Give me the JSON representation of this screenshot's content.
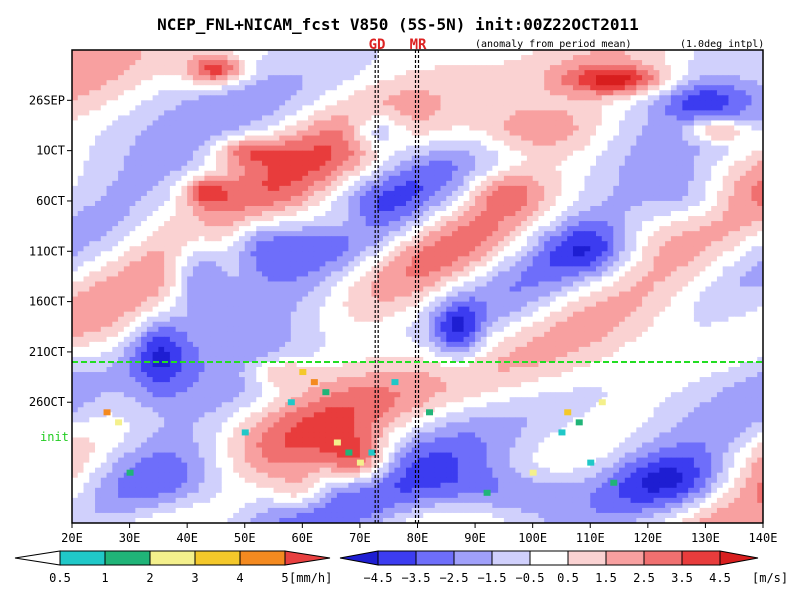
{
  "chart_data": {
    "type": "heatmap",
    "title": "NCEP_FNL+NICAM_fcst V850 (5S-5N) init:00Z22OCT2011",
    "subtitle_left": "(anomaly from period mean)",
    "subtitle_right": "(1.0deg intpl)",
    "x_axis": {
      "range": [
        20,
        140
      ],
      "ticks": [
        20,
        30,
        40,
        50,
        60,
        70,
        80,
        90,
        100,
        110,
        120,
        130,
        140
      ],
      "tick_labels": [
        "20E",
        "30E",
        "40E",
        "50E",
        "60E",
        "70E",
        "80E",
        "90E",
        "100E",
        "110E",
        "120E",
        "130E",
        "140E"
      ]
    },
    "y_axis": {
      "range_days": [
        0,
        47
      ],
      "tick_days": [
        5,
        10,
        15,
        20,
        25,
        30,
        35
      ],
      "tick_labels": [
        "26SEP",
        "1OCT",
        "6OCT",
        "11OCT",
        "16OCT",
        "21OCT",
        "26OCT"
      ]
    },
    "init": {
      "label": "init",
      "day": 31,
      "color": "#22dd22"
    },
    "markers": [
      {
        "label": "GD",
        "lon": 73,
        "color": "#dd2222"
      },
      {
        "label": "MR",
        "lon": 80,
        "color": "#dd2222"
      }
    ],
    "precip_colorbar": {
      "unit": "[mm/h]",
      "levels": [
        "0.5",
        "1",
        "2",
        "3",
        "4",
        "5"
      ],
      "colors": [
        "#ffffff",
        "#20c8c8",
        "#20b478",
        "#f4f08c",
        "#f4c82a",
        "#f48a20",
        "#e84040"
      ]
    },
    "wind_colorbar": {
      "unit": "[m/s]",
      "levels": [
        "−4.5",
        "−3.5",
        "−2.5",
        "−1.5",
        "−0.5",
        "0.5",
        "1.5",
        "2.5",
        "3.5",
        "4.5"
      ],
      "colors": [
        "#1e1ed2",
        "#3c3cf0",
        "#6e6efa",
        "#a0a0fa",
        "#d0d0fc",
        "#ffffff",
        "#fad2d2",
        "#f8a0a0",
        "#f07070",
        "#e83c3c",
        "#d81e1e"
      ]
    },
    "anomaly_features": [
      {
        "sign": "positive",
        "amplitude": 4.5,
        "lon": 45,
        "day": 2,
        "lon_halfwidth": 5,
        "day_halfwidth": 1.5
      },
      {
        "sign": "positive",
        "amplitude": 4.2,
        "lon": 115,
        "day": 3,
        "lon_halfwidth": 9,
        "day_halfwidth": 1.5
      },
      {
        "sign": "positive",
        "amplitude": 3.5,
        "lon": 132,
        "day": 8,
        "lon_halfwidth": 5,
        "day_halfwidth": 1.2
      },
      {
        "sign": "positive",
        "amplitude": 3.0,
        "lon": 50,
        "day": 10,
        "lon_halfwidth": 6,
        "day_halfwidth": 1.5
      },
      {
        "sign": "positive",
        "amplitude": 3.2,
        "lon": 43,
        "day": 14,
        "lon_halfwidth": 4,
        "day_halfwidth": 1.5
      },
      {
        "sign": "positive",
        "amplitude": 2.5,
        "lon": 100,
        "day": 8,
        "lon_halfwidth": 12,
        "day_halfwidth": 2.5
      },
      {
        "sign": "positive",
        "amplitude": 2.2,
        "lon": 67,
        "day": 17,
        "lon_halfwidth": 6,
        "day_halfwidth": 2
      },
      {
        "sign": "positive",
        "amplitude": 2.0,
        "lon": 95,
        "day": 14,
        "lon_halfwidth": 6,
        "day_halfwidth": 2
      },
      {
        "sign": "positive",
        "amplitude": 4.5,
        "lon": 70,
        "day": 41,
        "lon_halfwidth": 6,
        "day_halfwidth": 2.5
      },
      {
        "sign": "positive",
        "amplitude": 2.5,
        "lon": 56,
        "day": 32,
        "lon_halfwidth": 6,
        "day_halfwidth": 1.5
      },
      {
        "sign": "positive",
        "amplitude": 2.5,
        "lon": 60,
        "day": 44,
        "lon_halfwidth": 5,
        "day_halfwidth": 2
      },
      {
        "sign": "negative",
        "amplitude": -3.5,
        "lon": 73,
        "day": 8,
        "lon_halfwidth": 5,
        "day_halfwidth": 2
      },
      {
        "sign": "negative",
        "amplitude": -4.0,
        "lon": 42,
        "day": 22,
        "lon_halfwidth": 5,
        "day_halfwidth": 4
      },
      {
        "sign": "negative",
        "amplitude": -3.5,
        "lon": 35,
        "day": 30,
        "lon_halfwidth": 5,
        "day_halfwidth": 4
      },
      {
        "sign": "negative",
        "amplitude": -3.0,
        "lon": 52,
        "day": 19,
        "lon_halfwidth": 6,
        "day_halfwidth": 3
      },
      {
        "sign": "negative",
        "amplitude": -3.5,
        "lon": 87,
        "day": 28,
        "lon_halfwidth": 4,
        "day_halfwidth": 3
      },
      {
        "sign": "negative",
        "amplitude": -3.0,
        "lon": 110,
        "day": 20,
        "lon_halfwidth": 8,
        "day_halfwidth": 3
      },
      {
        "sign": "negative",
        "amplitude": -2.5,
        "lon": 128,
        "day": 15,
        "lon_halfwidth": 8,
        "day_halfwidth": 3
      },
      {
        "sign": "negative",
        "amplitude": -2.5,
        "lon": 130,
        "day": 5,
        "lon_halfwidth": 8,
        "day_halfwidth": 2
      },
      {
        "sign": "negative",
        "amplitude": -4.0,
        "lon": 40,
        "day": 43,
        "lon_halfwidth": 16,
        "day_halfwidth": 4
      },
      {
        "sign": "negative",
        "amplitude": -4.0,
        "lon": 95,
        "day": 44,
        "lon_halfwidth": 14,
        "day_halfwidth": 3
      },
      {
        "sign": "negative",
        "amplitude": -3.5,
        "lon": 125,
        "day": 43,
        "lon_halfwidth": 12,
        "day_halfwidth": 3
      }
    ],
    "precip_cells": [
      {
        "lon": 26,
        "day": 36,
        "level": 5
      },
      {
        "lon": 28,
        "day": 37,
        "level": 3
      },
      {
        "lon": 60,
        "day": 32,
        "level": 4
      },
      {
        "lon": 62,
        "day": 33,
        "level": 5
      },
      {
        "lon": 64,
        "day": 34,
        "level": 2
      },
      {
        "lon": 58,
        "day": 35,
        "level": 1
      },
      {
        "lon": 66,
        "day": 39,
        "level": 3
      },
      {
        "lon": 68,
        "day": 40,
        "level": 2
      },
      {
        "lon": 70,
        "day": 41,
        "level": 3
      },
      {
        "lon": 72,
        "day": 40,
        "level": 1
      },
      {
        "lon": 76,
        "day": 33,
        "level": 1
      },
      {
        "lon": 82,
        "day": 36,
        "level": 2
      },
      {
        "lon": 106,
        "day": 36,
        "level": 4
      },
      {
        "lon": 108,
        "day": 37,
        "level": 2
      },
      {
        "lon": 112,
        "day": 35,
        "level": 3
      },
      {
        "lon": 105,
        "day": 38,
        "level": 1
      },
      {
        "lon": 110,
        "day": 41,
        "level": 1
      },
      {
        "lon": 114,
        "day": 43,
        "level": 2
      },
      {
        "lon": 100,
        "day": 42,
        "level": 3
      },
      {
        "lon": 92,
        "day": 44,
        "level": 2
      },
      {
        "lon": 30,
        "day": 42,
        "level": 2
      },
      {
        "lon": 50,
        "day": 38,
        "level": 1
      }
    ]
  }
}
